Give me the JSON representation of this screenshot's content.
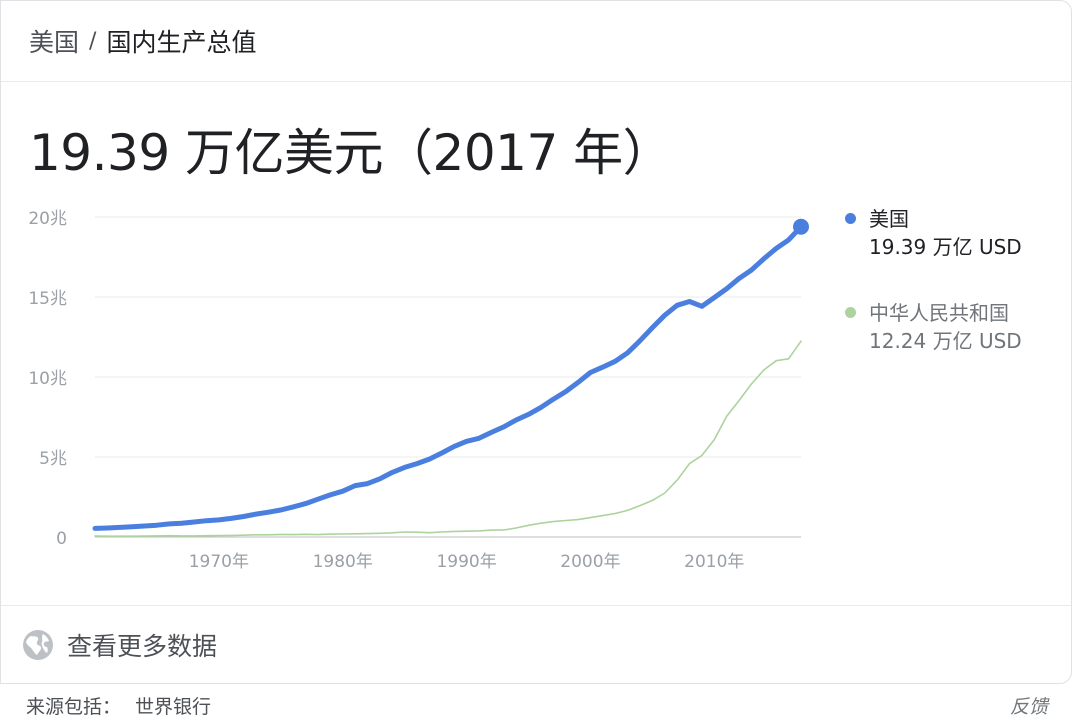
{
  "breadcrumb": {
    "country": "美国",
    "separator": "/",
    "topic": "国内生产总值"
  },
  "headline": "19.39 万亿美元（2017 年）",
  "legend": [
    {
      "name": "美国",
      "value": "19.39 万亿 USD",
      "color": "#4a7fe0"
    },
    {
      "name": "中华人民共和国",
      "value": "12.24 万亿 USD",
      "color": "#acd39e"
    }
  ],
  "more_data": {
    "icon": "globe-icon",
    "label": "查看更多数据"
  },
  "footer": {
    "source_label": "来源包括：",
    "source_org": "世界银行",
    "feedback": "反馈"
  },
  "chart_data": {
    "type": "line",
    "x": [
      1960,
      1961,
      1962,
      1963,
      1964,
      1965,
      1966,
      1967,
      1968,
      1969,
      1970,
      1971,
      1972,
      1973,
      1974,
      1975,
      1976,
      1977,
      1978,
      1979,
      1980,
      1981,
      1982,
      1983,
      1984,
      1985,
      1986,
      1987,
      1988,
      1989,
      1990,
      1991,
      1992,
      1993,
      1994,
      1995,
      1996,
      1997,
      1998,
      1999,
      2000,
      2001,
      2002,
      2003,
      2004,
      2005,
      2006,
      2007,
      2008,
      2009,
      2010,
      2011,
      2012,
      2013,
      2014,
      2015,
      2016,
      2017
    ],
    "series": [
      {
        "name": "美国",
        "color": "#4a7fe0",
        "values": [
          0.54,
          0.56,
          0.6,
          0.64,
          0.69,
          0.74,
          0.82,
          0.86,
          0.94,
          1.02,
          1.07,
          1.16,
          1.28,
          1.43,
          1.55,
          1.69,
          1.88,
          2.09,
          2.36,
          2.63,
          2.86,
          3.21,
          3.34,
          3.64,
          4.04,
          4.35,
          4.59,
          4.87,
          5.25,
          5.66,
          5.98,
          6.17,
          6.54,
          6.88,
          7.31,
          7.66,
          8.1,
          8.61,
          9.09,
          9.66,
          10.28,
          10.62,
          10.98,
          11.51,
          12.27,
          13.09,
          13.86,
          14.48,
          14.72,
          14.42,
          14.96,
          15.52,
          16.16,
          16.69,
          17.39,
          18.04,
          18.57,
          19.39
        ]
      },
      {
        "name": "中华人民共和国",
        "color": "#acd39e",
        "values": [
          0.06,
          0.05,
          0.05,
          0.05,
          0.06,
          0.07,
          0.08,
          0.07,
          0.07,
          0.08,
          0.09,
          0.1,
          0.11,
          0.14,
          0.14,
          0.16,
          0.15,
          0.17,
          0.15,
          0.18,
          0.19,
          0.2,
          0.21,
          0.23,
          0.26,
          0.31,
          0.3,
          0.27,
          0.31,
          0.35,
          0.36,
          0.38,
          0.43,
          0.44,
          0.56,
          0.73,
          0.86,
          0.96,
          1.03,
          1.09,
          1.21,
          1.34,
          1.47,
          1.66,
          1.96,
          2.29,
          2.75,
          3.55,
          4.59,
          5.1,
          6.09,
          7.55,
          8.53,
          9.57,
          10.44,
          11.02,
          11.14,
          12.24
        ]
      }
    ],
    "y_ticks": [
      {
        "value": 0,
        "label": "0"
      },
      {
        "value": 5,
        "label": "5兆"
      },
      {
        "value": 10,
        "label": "10兆"
      },
      {
        "value": 15,
        "label": "15兆"
      },
      {
        "value": 20,
        "label": "20兆"
      }
    ],
    "x_ticks": [
      {
        "value": 1970,
        "label": "1970年"
      },
      {
        "value": 1980,
        "label": "1980年"
      },
      {
        "value": 1990,
        "label": "1990年"
      },
      {
        "value": 2000,
        "label": "2000年"
      },
      {
        "value": 2010,
        "label": "2010年"
      }
    ],
    "xlim": [
      1960,
      2017
    ],
    "ylim": [
      0,
      20
    ],
    "grid": true,
    "highlight_last_point_series": "美国"
  }
}
